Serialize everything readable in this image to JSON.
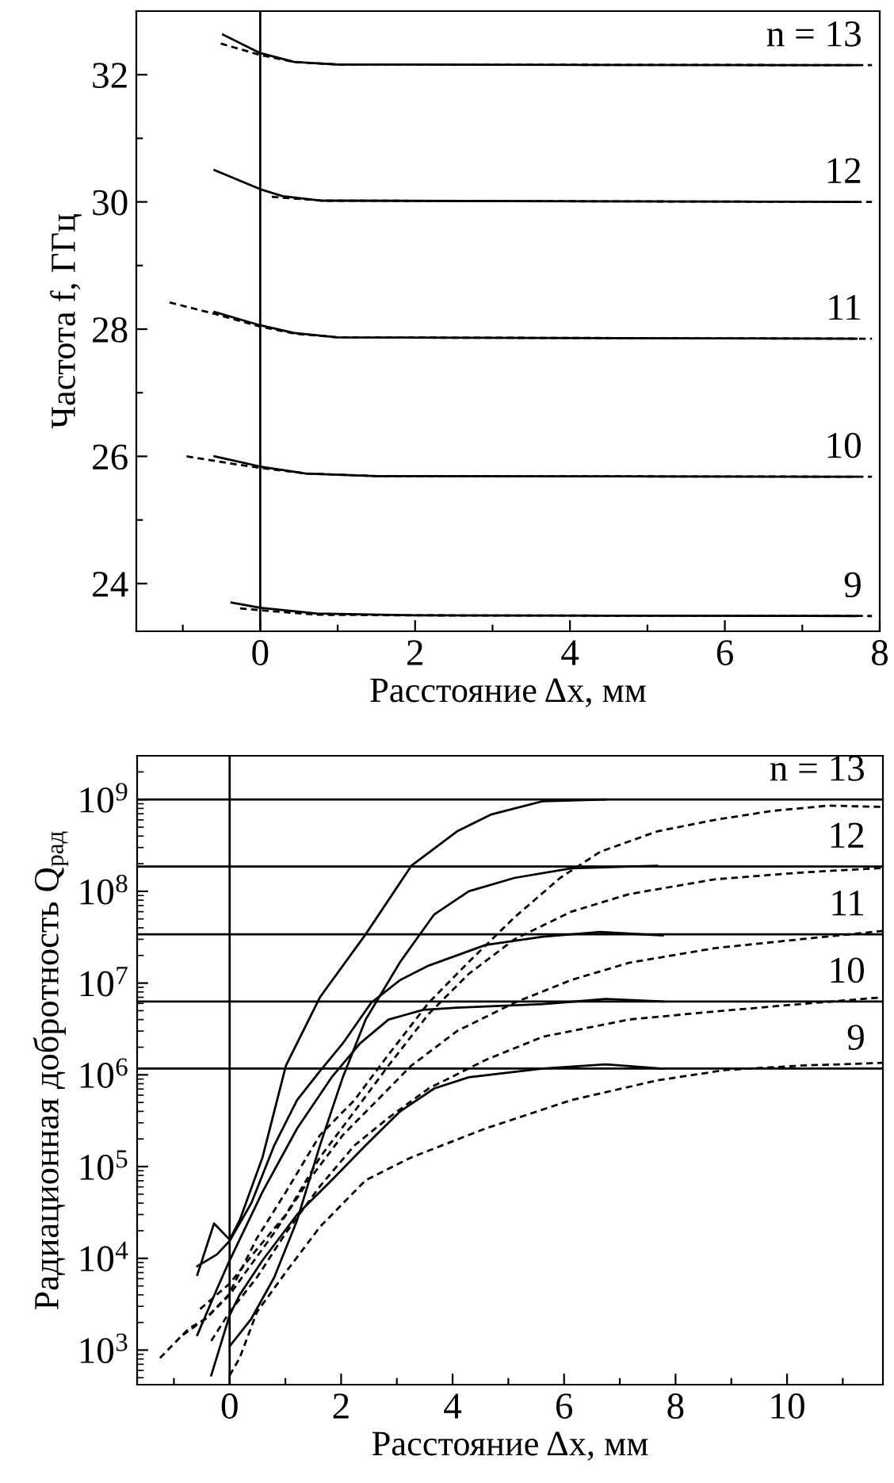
{
  "chart_data": [
    {
      "type": "line",
      "xlabel": "Расстояние Δx, мм",
      "ylabel": "Частота f, ГГц",
      "xlim": [
        -1.6,
        8
      ],
      "ylim": [
        23.25,
        33.0
      ],
      "xticks": [
        {
          "value": -1,
          "label": null
        },
        0,
        {
          "value": 1,
          "label": null
        },
        2,
        {
          "value": 3,
          "label": null
        },
        4,
        {
          "value": 5,
          "label": null
        },
        6,
        {
          "value": 7,
          "label": null
        },
        8
      ],
      "yticks": [
        24,
        {
          "value": 25,
          "label": null
        },
        26,
        {
          "value": 27,
          "label": null
        },
        28,
        {
          "value": 29,
          "label": null
        },
        30,
        {
          "value": 31,
          "label": null
        },
        32
      ],
      "ref_lines": [
        {
          "axis": "x",
          "value": 0,
          "color": "#000000"
        }
      ],
      "series": [
        {
          "color": "#000000",
          "line_style": "solid",
          "x": [
            -0.48,
            0,
            0.44,
            1.0,
            7.7
          ],
          "values": [
            32.63,
            32.34,
            32.2,
            32.16,
            32.15
          ]
        },
        {
          "color": "#000000",
          "line_style": "dashed",
          "x": [
            -0.51,
            0,
            0.44,
            1.0,
            7.9
          ],
          "values": [
            32.49,
            32.31,
            32.2,
            32.16,
            32.15
          ]
        },
        {
          "color": "#000000",
          "line_style": "solid",
          "x": [
            -0.59,
            0,
            0.29,
            0.8,
            7.7
          ],
          "values": [
            30.5,
            30.2,
            30.09,
            30.02,
            30.0
          ]
        },
        {
          "color": "#000000",
          "line_style": "dashed",
          "x": [
            0.15,
            0.8,
            7.9
          ],
          "values": [
            30.08,
            30.02,
            30.0
          ]
        },
        {
          "color": "#000000",
          "line_style": "solid",
          "x": [
            -0.59,
            0,
            0.44,
            1.0,
            7.7
          ],
          "values": [
            28.27,
            28.06,
            27.94,
            27.87,
            27.85
          ]
        },
        {
          "color": "#000000",
          "line_style": "dashed",
          "x": [
            -1.17,
            -0.59,
            0,
            0.44,
            1.0,
            7.9
          ],
          "values": [
            28.42,
            28.24,
            28.04,
            27.93,
            27.87,
            27.85
          ]
        },
        {
          "color": "#000000",
          "line_style": "solid",
          "x": [
            -0.59,
            0,
            0.59,
            1.5,
            7.7
          ],
          "values": [
            26.0,
            25.84,
            25.73,
            25.69,
            25.68
          ]
        },
        {
          "color": "#000000",
          "line_style": "dashed",
          "x": [
            -0.95,
            -0.29,
            0,
            0.59,
            1.5,
            7.9
          ],
          "values": [
            26.0,
            25.87,
            25.82,
            25.73,
            25.69,
            25.68
          ]
        },
        {
          "color": "#000000",
          "line_style": "solid",
          "x": [
            -0.37,
            0,
            0.73,
            2.0,
            7.7
          ],
          "values": [
            23.7,
            23.62,
            23.53,
            23.5,
            23.49
          ]
        },
        {
          "color": "#000000",
          "line_style": "dashed",
          "x": [
            -0.26,
            0,
            0.73,
            2.0,
            7.9
          ],
          "values": [
            23.61,
            23.58,
            23.51,
            23.5,
            23.49
          ]
        }
      ],
      "annotations": [
        "n = 13",
        "12",
        "11",
        "10",
        "9"
      ]
    },
    {
      "type": "line",
      "log": "y",
      "xlabel": "Расстояние Δx, мм",
      "ylabel": "Радиационная добротность Q$_{рад}$",
      "xlim": [
        -1.66,
        11.72
      ],
      "ylim": [
        420,
        3000000000.0
      ],
      "xticks": [
        {
          "value": -1,
          "label": null
        },
        0,
        {
          "value": 1,
          "label": null
        },
        2,
        {
          "value": 3,
          "label": null
        },
        4,
        {
          "value": 5,
          "label": null
        },
        6,
        {
          "value": 7,
          "label": null
        },
        8,
        {
          "value": 9,
          "label": null
        },
        10,
        {
          "value": 11,
          "label": null
        }
      ],
      "yticks": [
        {
          "value": 1000,
          "label": "10$^{3}$"
        },
        {
          "value": 10000,
          "label": "10$^{4}$"
        },
        {
          "value": 100000,
          "label": "10$^{5}$"
        },
        {
          "value": 1000000,
          "label": "10$^{6}$"
        },
        {
          "value": 10000000,
          "label": "10$^{7}$"
        },
        {
          "value": 100000000,
          "label": "10$^{8}$"
        },
        {
          "value": 1000000000,
          "label": "10$^{9}$"
        }
      ],
      "ref_lines": [
        {
          "axis": "x",
          "value": 0,
          "color": "#000000"
        },
        {
          "axis": "y",
          "value": 1000000000.0,
          "color": "#000000"
        },
        {
          "axis": "y",
          "value": 186000000.0,
          "color": "#000000"
        },
        {
          "axis": "y",
          "value": 34000000.0,
          "color": "#000000"
        },
        {
          "axis": "y",
          "value": 6300000.0,
          "color": "#000000"
        },
        {
          "axis": "y",
          "value": 1170000.0,
          "color": "#000000"
        }
      ],
      "series": [
        {
          "color": "#000000",
          "line_style": "solid",
          "x": [
            -0.58,
            -0.28,
            0,
            0.18,
            0.59,
            1.01,
            1.62,
            2.44,
            3.26,
            4.08,
            4.7,
            5.62,
            6.75
          ],
          "values": [
            6600,
            24000,
            16000,
            26000,
            126000,
            1260000,
            7000000,
            34000000,
            190000000,
            450000000,
            690000000,
            960000000,
            1000000000
          ]
        },
        {
          "color": "#000000",
          "line_style": "solid",
          "x": [
            0,
            0.39,
            0.8,
            1.21,
            1.62,
            2.03,
            2.44,
            3.06,
            3.67,
            4.29,
            5.11,
            6.13,
            7.67
          ],
          "values": [
            1100,
            2200,
            6200,
            26000,
            170000,
            940000,
            4000000,
            17000000,
            56000000,
            100000000,
            140000000,
            178000000,
            190000000
          ]
        },
        {
          "color": "#000000",
          "line_style": "solid",
          "x": [
            -0.58,
            -0.23,
            0,
            0.39,
            0.8,
            1.21,
            1.62,
            2.03,
            2.54,
            3.06,
            3.57,
            4.59,
            5.62,
            6.65,
            7.77
          ],
          "values": [
            8200,
            11000,
            15500,
            40000,
            170000,
            530000,
            1100000,
            2200000,
            6100000,
            10800000,
            15500000,
            26000000,
            32000000,
            36000000,
            33000000
          ]
        },
        {
          "color": "#000000",
          "line_style": "solid",
          "x": [
            -0.58,
            -0.23,
            0,
            0.59,
            1.21,
            1.83,
            2.34,
            2.85,
            3.47,
            4.08,
            5.62,
            6.75,
            7.77
          ],
          "values": [
            1460,
            4600,
            9500,
            53000,
            260000,
            940000,
            2200000,
            4000000,
            5100000,
            5400000,
            5900000,
            6700000,
            6300000
          ]
        },
        {
          "color": "#000000",
          "line_style": "solid",
          "x": [
            -0.33,
            0,
            0.18,
            0.59,
            1.21,
            1.83,
            2.44,
            3.06,
            3.67,
            4.29,
            5.62,
            6.75,
            7.77
          ],
          "values": [
            530,
            2400,
            4000,
            9500,
            30000,
            71000,
            170000,
            400000,
            710000,
            940000,
            1170000,
            1300000,
            1170000
          ]
        },
        {
          "color": "#000000",
          "line_style": "dashed",
          "x": [
            -1.25,
            -0.74,
            -0.43,
            -0.02,
            0.49,
            1.01,
            1.62,
            2.24,
            2.85,
            3.57,
            4.29,
            5.11,
            5.93,
            6.65,
            7.67,
            8.7,
            9.72,
            10.75,
            11.72
          ],
          "values": [
            820,
            1700,
            2200,
            4000,
            16600,
            53000,
            220000,
            530000,
            1660000,
            6100000,
            17000000,
            52000000,
            140000000,
            270000000,
            450000000,
            600000000,
            750000000,
            860000000,
            830000000
          ]
        },
        {
          "color": "#000000",
          "line_style": "dashed",
          "x": [
            -0.53,
            0,
            0.49,
            1.01,
            1.62,
            2.24,
            2.85,
            3.57,
            4.29,
            5.11,
            6.13,
            7.16,
            8.7,
            10.24,
            11.72
          ],
          "values": [
            2800,
            5300,
            12600,
            30000,
            126000,
            400000,
            1260000,
            4600000,
            12600000,
            30000000,
            60000000,
            93000000,
            135000000,
            160000000,
            180000000
          ]
        },
        {
          "color": "#000000",
          "line_style": "dashed",
          "x": [
            -0.84,
            -0.43,
            0,
            0.29,
            0.8,
            1.42,
            2.03,
            2.65,
            3.26,
            4.08,
            5.11,
            6.13,
            7.16,
            8.7,
            10.24,
            11.72
          ],
          "values": [
            1460,
            2200,
            4000,
            7100,
            19000,
            71000,
            220000,
            530000,
            1260000,
            3000000,
            6100000,
            10800000,
            16600000,
            24000000,
            30000000,
            37000000
          ]
        },
        {
          "color": "#000000",
          "line_style": "dashed",
          "x": [
            -0.33,
            0,
            0.49,
            1.01,
            1.62,
            2.24,
            2.85,
            3.57,
            4.59,
            5.62,
            7.16,
            8.7,
            10.24,
            11.72
          ],
          "values": [
            1260,
            2600,
            6200,
            19000,
            61000,
            170000,
            340000,
            710000,
            1450000,
            2600000,
            4000000,
            4900000,
            5900000,
            7000000
          ]
        },
        {
          "color": "#000000",
          "line_style": "dashed",
          "x": [
            0,
            0.18,
            0.49,
            1.01,
            1.62,
            2.44,
            3.26,
            4.59,
            6.13,
            7.67,
            8.9,
            10.24,
            11.72
          ],
          "values": [
            530,
            820,
            2600,
            7100,
            22000,
            71000,
            126000,
            260000,
            530000,
            870000,
            1130000,
            1260000,
            1350000
          ]
        }
      ],
      "annotations": [
        "n = 13",
        "12",
        "11",
        "10",
        "9"
      ]
    }
  ]
}
